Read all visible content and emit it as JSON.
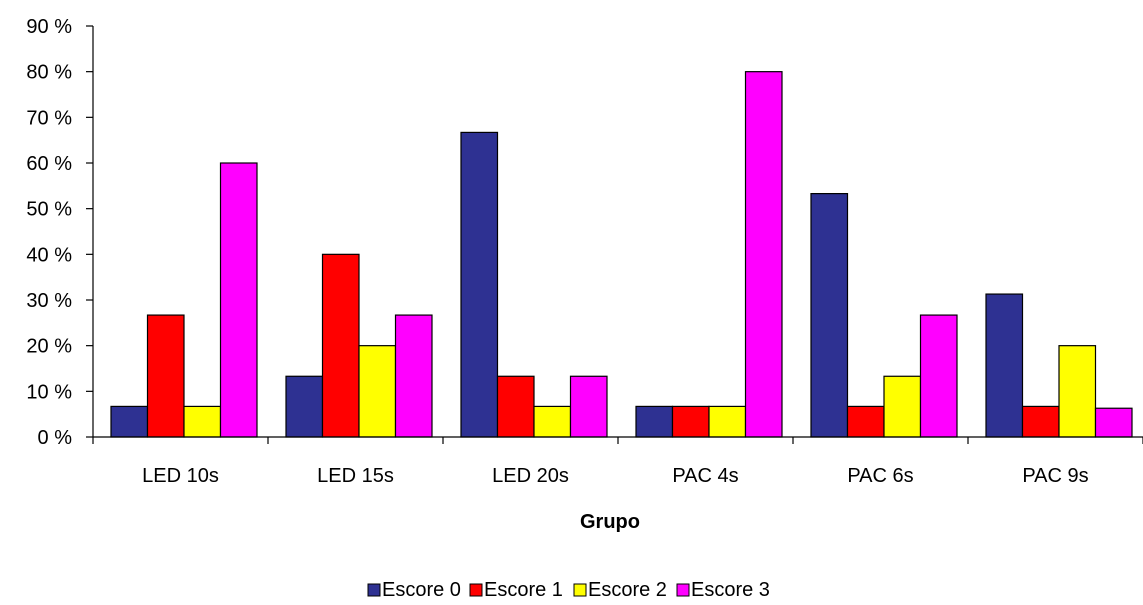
{
  "chart_data": {
    "type": "bar",
    "title": "",
    "xlabel": "Grupo",
    "ylabel": "",
    "ylim": [
      0,
      90
    ],
    "yticks": [
      0,
      10,
      20,
      30,
      40,
      50,
      60,
      70,
      80,
      90
    ],
    "ytick_suffix": " %",
    "grid": false,
    "legend_position": "bottom",
    "categories": [
      "LED 10s",
      "LED 15s",
      "LED 20s",
      "PAC 4s",
      "PAC 6s",
      "PAC 9s"
    ],
    "series": [
      {
        "name": "Escore 0",
        "color": "#2e3192",
        "values": [
          6.7,
          13.3,
          66.7,
          6.7,
          53.3,
          31.3
        ]
      },
      {
        "name": "Escore 1",
        "color": "#ff0000",
        "values": [
          26.7,
          40.0,
          13.3,
          6.7,
          6.7,
          6.7
        ]
      },
      {
        "name": "Escore 2",
        "color": "#ffff00",
        "values": [
          6.7,
          20.0,
          6.7,
          6.7,
          13.3,
          20.0
        ]
      },
      {
        "name": "Escore 3",
        "color": "#ff00ff",
        "values": [
          60.0,
          26.7,
          13.3,
          80.0,
          26.7,
          6.3
        ]
      }
    ]
  }
}
